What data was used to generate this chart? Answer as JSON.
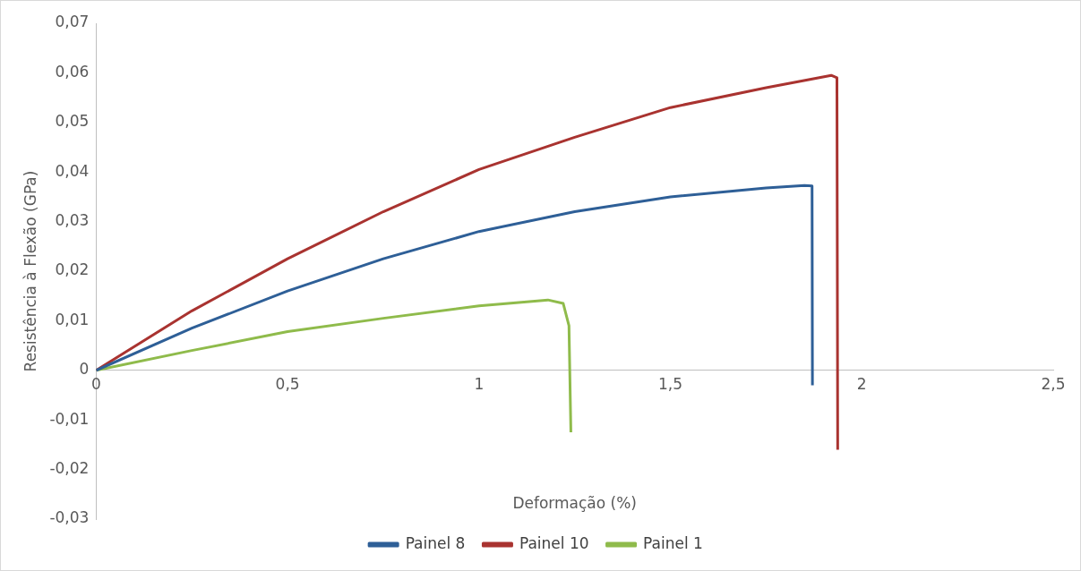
{
  "chart_data": {
    "type": "line",
    "xlabel": "Deformação (%)",
    "ylabel": "Resistência à Flexão (GPa)",
    "xlim": [
      0,
      2.5
    ],
    "ylim": [
      -0.03,
      0.07
    ],
    "xticks": [
      0,
      {
        "value": 0.5,
        "label": "0,5"
      },
      1,
      {
        "value": 1.5,
        "label": "1,5"
      },
      2,
      {
        "value": 2.5,
        "label": "2,5"
      }
    ],
    "yticks": [
      {
        "value": -0.03,
        "label": "-0,03"
      },
      {
        "value": -0.02,
        "label": "-0,02"
      },
      {
        "value": -0.01,
        "label": "-0,01"
      },
      0,
      {
        "value": 0.01,
        "label": "0,01"
      },
      {
        "value": 0.02,
        "label": "0,02"
      },
      {
        "value": 0.03,
        "label": "0,03"
      },
      {
        "value": 0.04,
        "label": "0,04"
      },
      {
        "value": 0.05,
        "label": "0,05"
      },
      {
        "value": 0.06,
        "label": "0,06"
      },
      {
        "value": 0.07,
        "label": "0,07"
      }
    ],
    "grid": false,
    "legend": "bottom",
    "marker": "none",
    "line_style": "solid",
    "series": [
      {
        "name": "Painel 8",
        "color": "#2e5f97",
        "x": [
          0,
          0.25,
          0.5,
          0.75,
          1,
          1.25,
          1.5,
          1.75,
          1.85,
          1.87,
          1.871
        ],
        "values": [
          0,
          0.0085,
          0.016,
          0.0225,
          0.028,
          0.032,
          0.035,
          0.0368,
          0.0373,
          0.0372,
          -0.003
        ]
      },
      {
        "name": "Painel 10",
        "color": "#a93330",
        "x": [
          0,
          0.25,
          0.5,
          0.75,
          1,
          1.25,
          1.5,
          1.75,
          1.92,
          1.935,
          1.937
        ],
        "values": [
          0,
          0.012,
          0.0225,
          0.032,
          0.0405,
          0.047,
          0.053,
          0.057,
          0.0595,
          0.059,
          -0.016
        ]
      },
      {
        "name": "Painel 1",
        "color": "#8fbb4b",
        "x": [
          0,
          0.25,
          0.5,
          0.75,
          1,
          1.18,
          1.22,
          1.235,
          1.24
        ],
        "values": [
          0,
          0.004,
          0.0078,
          0.0105,
          0.013,
          0.0142,
          0.0135,
          0.009,
          -0.0125
        ]
      }
    ]
  }
}
